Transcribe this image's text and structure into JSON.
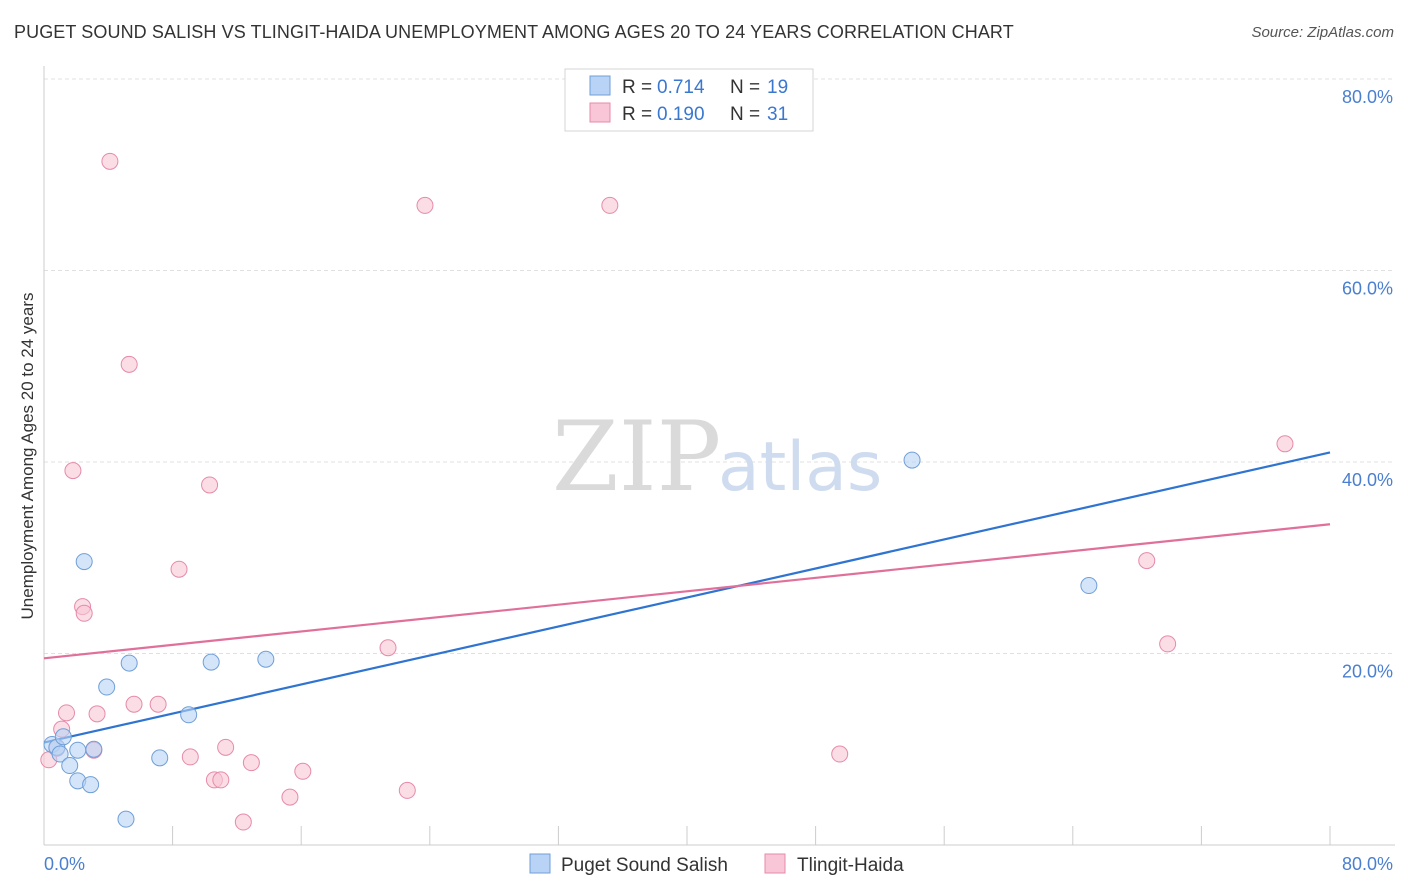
{
  "title": "PUGET SOUND SALISH VS TLINGIT-HAIDA UNEMPLOYMENT AMONG AGES 20 TO 24 YEARS CORRELATION CHART",
  "source": "Source: ZipAtlas.com",
  "watermark": {
    "zip": "ZIP",
    "atlas": "atlas"
  },
  "colors": {
    "blue_fill": "#b8d3f5",
    "blue_stroke": "#6f9fd8",
    "blue_line": "#2f74d0",
    "pink_fill": "#f8c6d6",
    "pink_stroke": "#e68aa8",
    "pink_line": "#e0709a",
    "grid": "#e0e0e0",
    "tick_text": "#4a7fd0"
  },
  "legend": {
    "rows": [
      {
        "r_label": "R =",
        "r_value": "0.714",
        "n_label": "N =",
        "n_value": "19",
        "series": "blue"
      },
      {
        "r_label": "R =",
        "r_value": "0.190",
        "n_label": "N =",
        "n_value": "31",
        "series": "pink"
      }
    ]
  },
  "bottom_legend": [
    {
      "label": "Puget Sound Salish",
      "series": "blue"
    },
    {
      "label": "Tlingit-Haida",
      "series": "pink"
    }
  ],
  "chart_data": {
    "type": "scatter",
    "title": "PUGET SOUND SALISH VS TLINGIT-HAIDA UNEMPLOYMENT AMONG AGES 20 TO 24 YEARS CORRELATION CHART",
    "xlabel": "",
    "ylabel": "Unemployment Among Ages 20 to 24 years",
    "xlim": [
      0,
      80
    ],
    "ylim": [
      0,
      80
    ],
    "x_tick_labels": [
      {
        "value": 0,
        "label": "0.0%"
      },
      {
        "value": 80,
        "label": "80.0%"
      }
    ],
    "y_tick_labels": [
      {
        "value": 20,
        "label": "20.0%"
      },
      {
        "value": 40,
        "label": "40.0%"
      },
      {
        "value": 60,
        "label": "60.0%"
      },
      {
        "value": 80,
        "label": "80.0%"
      }
    ],
    "y_gridlines": [
      20,
      40,
      60,
      80
    ],
    "x_ticks": [
      0,
      8,
      16,
      24,
      32,
      40,
      48,
      56,
      64,
      72,
      80
    ],
    "series": [
      {
        "name": "Puget Sound Salish",
        "color": "blue",
        "r": 0.714,
        "n": 19,
        "points": [
          [
            0.5,
            10.5
          ],
          [
            0.8,
            10.2
          ],
          [
            1.0,
            9.5
          ],
          [
            1.2,
            11.3
          ],
          [
            1.6,
            8.3
          ],
          [
            2.1,
            9.9
          ],
          [
            2.1,
            6.7
          ],
          [
            2.5,
            29.6
          ],
          [
            2.9,
            6.3
          ],
          [
            3.1,
            10.0
          ],
          [
            3.9,
            16.5
          ],
          [
            5.1,
            2.7
          ],
          [
            5.3,
            19.0
          ],
          [
            7.2,
            9.1
          ],
          [
            9.0,
            13.6
          ],
          [
            10.4,
            19.1
          ],
          [
            13.8,
            19.4
          ],
          [
            54.0,
            40.2
          ],
          [
            65.0,
            27.1
          ]
        ],
        "trend": {
          "x0": 0,
          "y0": 10.7,
          "x1": 80,
          "y1": 41.0
        }
      },
      {
        "name": "Tlingit-Haida",
        "color": "pink",
        "r": 0.19,
        "n": 31,
        "points": [
          [
            0.3,
            8.9
          ],
          [
            0.8,
            10.1
          ],
          [
            1.1,
            12.1
          ],
          [
            1.4,
            13.8
          ],
          [
            1.8,
            39.1
          ],
          [
            2.4,
            24.9
          ],
          [
            2.5,
            24.2
          ],
          [
            3.1,
            9.9
          ],
          [
            3.3,
            13.7
          ],
          [
            4.1,
            71.4
          ],
          [
            5.3,
            50.2
          ],
          [
            5.6,
            14.7
          ],
          [
            7.1,
            14.7
          ],
          [
            8.4,
            28.8
          ],
          [
            9.1,
            9.2
          ],
          [
            10.3,
            37.6
          ],
          [
            10.6,
            6.8
          ],
          [
            11.0,
            6.8
          ],
          [
            11.3,
            10.2
          ],
          [
            12.4,
            2.4
          ],
          [
            12.9,
            8.6
          ],
          [
            15.3,
            5.0
          ],
          [
            16.1,
            7.7
          ],
          [
            21.4,
            20.6
          ],
          [
            22.6,
            5.7
          ],
          [
            23.7,
            66.8
          ],
          [
            35.2,
            66.8
          ],
          [
            49.5,
            9.5
          ],
          [
            68.6,
            29.7
          ],
          [
            69.9,
            21.0
          ],
          [
            77.2,
            41.9
          ]
        ],
        "trend": {
          "x0": 0,
          "y0": 19.5,
          "x1": 80,
          "y1": 33.5
        }
      }
    ]
  }
}
